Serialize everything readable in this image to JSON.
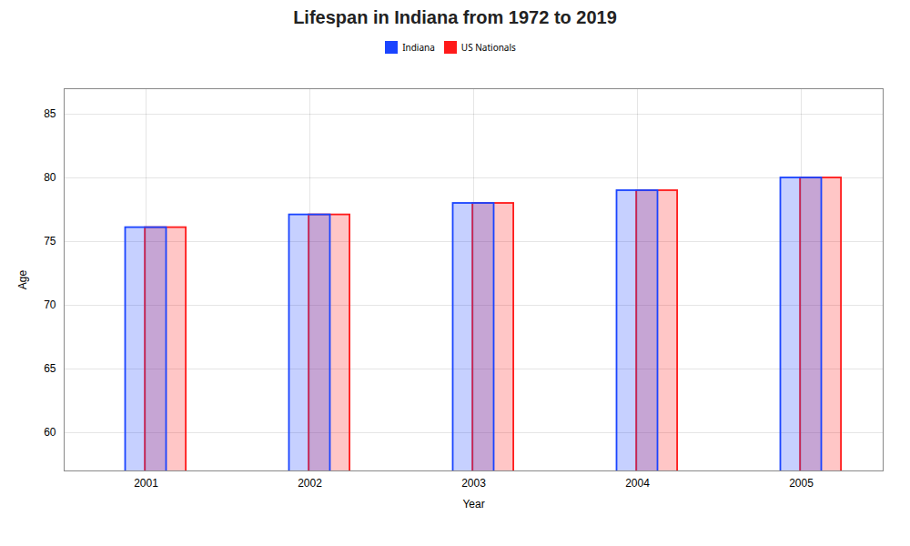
{
  "chart_data": {
    "type": "bar",
    "title": "Lifespan in Indiana from 1972 to 2019",
    "xlabel": "Year",
    "ylabel": "Age",
    "categories": [
      "2001",
      "2002",
      "2003",
      "2004",
      "2005"
    ],
    "series": [
      {
        "name": "Indiana",
        "color": "#1a44ff",
        "values": [
          76.1,
          77.1,
          78.0,
          79.0,
          80.0
        ]
      },
      {
        "name": "US Nationals",
        "color": "#ff1a1a",
        "values": [
          76.1,
          77.1,
          78.0,
          79.0,
          80.0
        ]
      }
    ],
    "ylim": [
      57,
      87
    ],
    "yticks": [
      60,
      65,
      70,
      75,
      80,
      85
    ],
    "grid": true,
    "legend": "top"
  }
}
